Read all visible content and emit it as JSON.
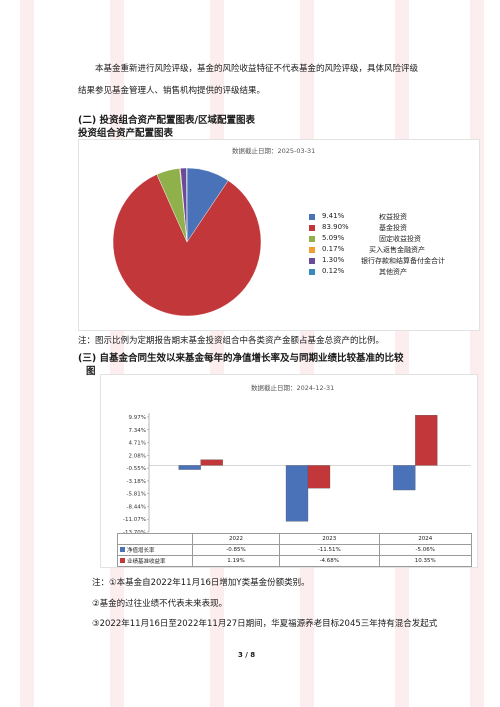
{
  "intro": {
    "line1": "本基金重新进行风险评级，基金的风险收益特征不代表基金的风险评级，具体风险评级",
    "line2": "结果参见基金管理人、销售机构提供的评级结果。"
  },
  "section2": {
    "heading": "(二) 投资组合资产配置图表/区域配置图表",
    "subheading": "投资组合资产配置图表",
    "date": "数据截止日期：2025-03-31",
    "note": "注：图示比例为定期报告期末基金投资组合中各类资产金额占基金总资产的比例。"
  },
  "chart_data": [
    {
      "type": "pie",
      "slices": [
        {
          "pct": "9.41%",
          "label": "权益投资",
          "value": 9.41,
          "color": "#4a72b8"
        },
        {
          "pct": "83.90%",
          "label": "基金投资",
          "value": 83.9,
          "color": "#c2373a"
        },
        {
          "pct": "5.09%",
          "label": "固定收益投资",
          "value": 5.09,
          "color": "#8fb04a"
        },
        {
          "pct": "0.17%",
          "label": "买入返售金融资产",
          "value": 0.17,
          "color": "#f0a030"
        },
        {
          "pct": "1.30%",
          "label": "银行存款和结算备付金合计",
          "value": 1.3,
          "color": "#6b4a9a"
        },
        {
          "pct": "0.12%",
          "label": "其他资产",
          "value": 0.12,
          "color": "#3a8ac0"
        }
      ]
    },
    {
      "type": "bar",
      "categories": [
        "2022",
        "2023",
        "2024"
      ],
      "yticks": [
        "9.97%",
        "7.34%",
        "4.71%",
        "2.08%",
        "-0.55%",
        "-3.18%",
        "-5.81%",
        "-8.44%",
        "-11.07%",
        "-13.70%"
      ],
      "ylim": [
        -13.7,
        9.97
      ],
      "series": [
        {
          "name": "净值增长率",
          "values": [
            -0.85,
            -11.51,
            -5.06
          ],
          "labels": [
            "-0.85%",
            "-11.51%",
            "-5.06%"
          ],
          "color": "#4a72b8"
        },
        {
          "name": "业绩基准收益率",
          "values": [
            1.19,
            -4.68,
            10.35
          ],
          "labels": [
            "1.19%",
            "-4.68%",
            "10.35%"
          ],
          "color": "#c2373a"
        }
      ]
    }
  ],
  "section3": {
    "heading1": "(三) 自基金合同生效以来基金每年的净值增长率及与同期业绩比较基准的比较",
    "heading2": "图",
    "date": "数据截止日期：2024-12-31"
  },
  "notes": {
    "n1": "注：①本基金自2022年11月16日增加Y类基金份额类别。",
    "n2": "②基金的过往业绩不代表未来表现。",
    "n3": "③2022年11月16日至2022年11月27日期间，华夏福源养老目标2045三年持有混合发起式"
  },
  "page_number": "3 / 8"
}
